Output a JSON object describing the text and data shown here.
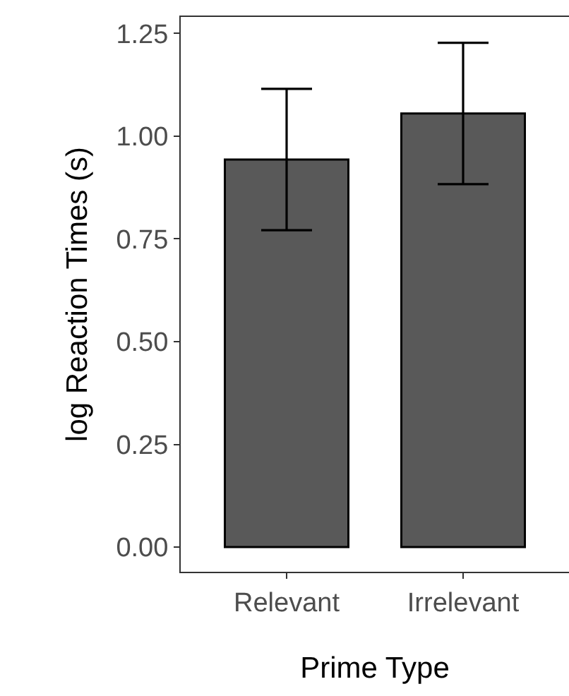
{
  "chart_data": {
    "type": "bar",
    "xlabel": "Prime Type",
    "ylabel": "log Reaction Times (s)",
    "categories": [
      "Relevant",
      "Irrelevant"
    ],
    "values": [
      0.943,
      1.055
    ],
    "errors": [
      0.172,
      0.172
    ],
    "color": "#595959",
    "ylim": [
      -0.06,
      1.29
    ],
    "yticks": [
      {
        "value": 0,
        "label": "0.00"
      },
      {
        "value": 0.25,
        "label": "0.25"
      },
      {
        "value": 0.5,
        "label": "0.50"
      },
      {
        "value": 0.75,
        "label": "0.75"
      },
      {
        "value": 1,
        "label": "1.00"
      },
      {
        "value": 1.25,
        "label": "1.25"
      }
    ],
    "grid": false,
    "legend": false
  }
}
